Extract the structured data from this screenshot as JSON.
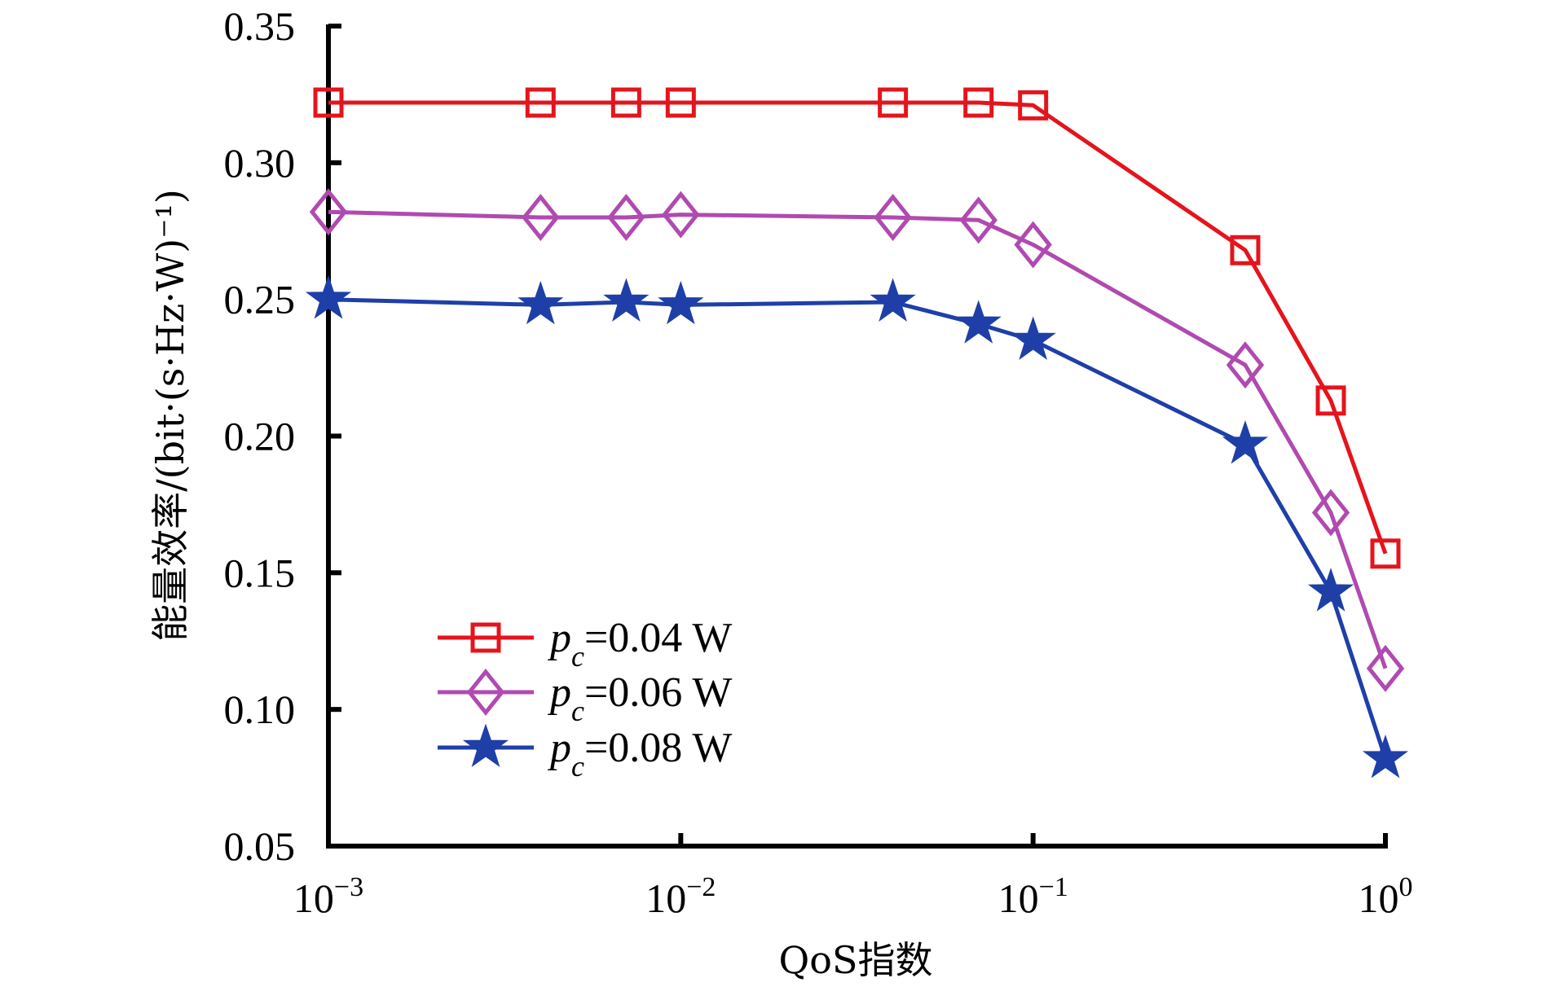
{
  "chart_data": {
    "type": "line",
    "title": "",
    "xlabel": "QoS指数",
    "ylabel": "能量效率/(bit·(s·Hz·W)⁻¹)",
    "xscale": "log",
    "xlim": [
      0.001,
      1
    ],
    "ylim": [
      0.05,
      0.35
    ],
    "grid": false,
    "x_ticks": [
      {
        "value": 0.001,
        "base": "10",
        "exp": "−3"
      },
      {
        "value": 0.01,
        "base": "10",
        "exp": "−2"
      },
      {
        "value": 0.1,
        "base": "10",
        "exp": "−1"
      },
      {
        "value": 1,
        "base": "10",
        "exp": "0"
      }
    ],
    "y_ticks": [
      {
        "value": 0.05,
        "label": "0.05"
      },
      {
        "value": 0.1,
        "label": "0.10"
      },
      {
        "value": 0.15,
        "label": "0.15"
      },
      {
        "value": 0.2,
        "label": "0.20"
      },
      {
        "value": 0.25,
        "label": "0.25"
      },
      {
        "value": 0.3,
        "label": "0.30"
      },
      {
        "value": 0.35,
        "label": "0.35"
      }
    ],
    "x": [
      0.001,
      0.004,
      0.007,
      0.01,
      0.04,
      0.07,
      0.1,
      0.4,
      0.7,
      1
    ],
    "legend_position": "lower-left",
    "series": [
      {
        "name": "p_c=0.04 W",
        "label_main": "p",
        "label_sub": "c",
        "label_rest": "=0.04 W",
        "color": "#e5141c",
        "marker": "square",
        "values": [
          0.322,
          0.322,
          0.322,
          0.322,
          0.322,
          0.322,
          0.321,
          0.268,
          0.213,
          0.157
        ]
      },
      {
        "name": "p_c=0.06 W",
        "label_main": "p",
        "label_sub": "c",
        "label_rest": "=0.06 W",
        "color": "#b04ab0",
        "marker": "diamond",
        "values": [
          0.282,
          0.28,
          0.28,
          0.281,
          0.28,
          0.279,
          0.27,
          0.226,
          0.172,
          0.115
        ]
      },
      {
        "name": "p_c=0.08 W",
        "label_main": "p",
        "label_sub": "c",
        "label_rest": "=0.08 W",
        "color": "#1f3fa8",
        "marker": "star",
        "values": [
          0.25,
          0.248,
          0.249,
          0.248,
          0.249,
          0.241,
          0.235,
          0.197,
          0.143,
          0.082
        ]
      }
    ]
  }
}
